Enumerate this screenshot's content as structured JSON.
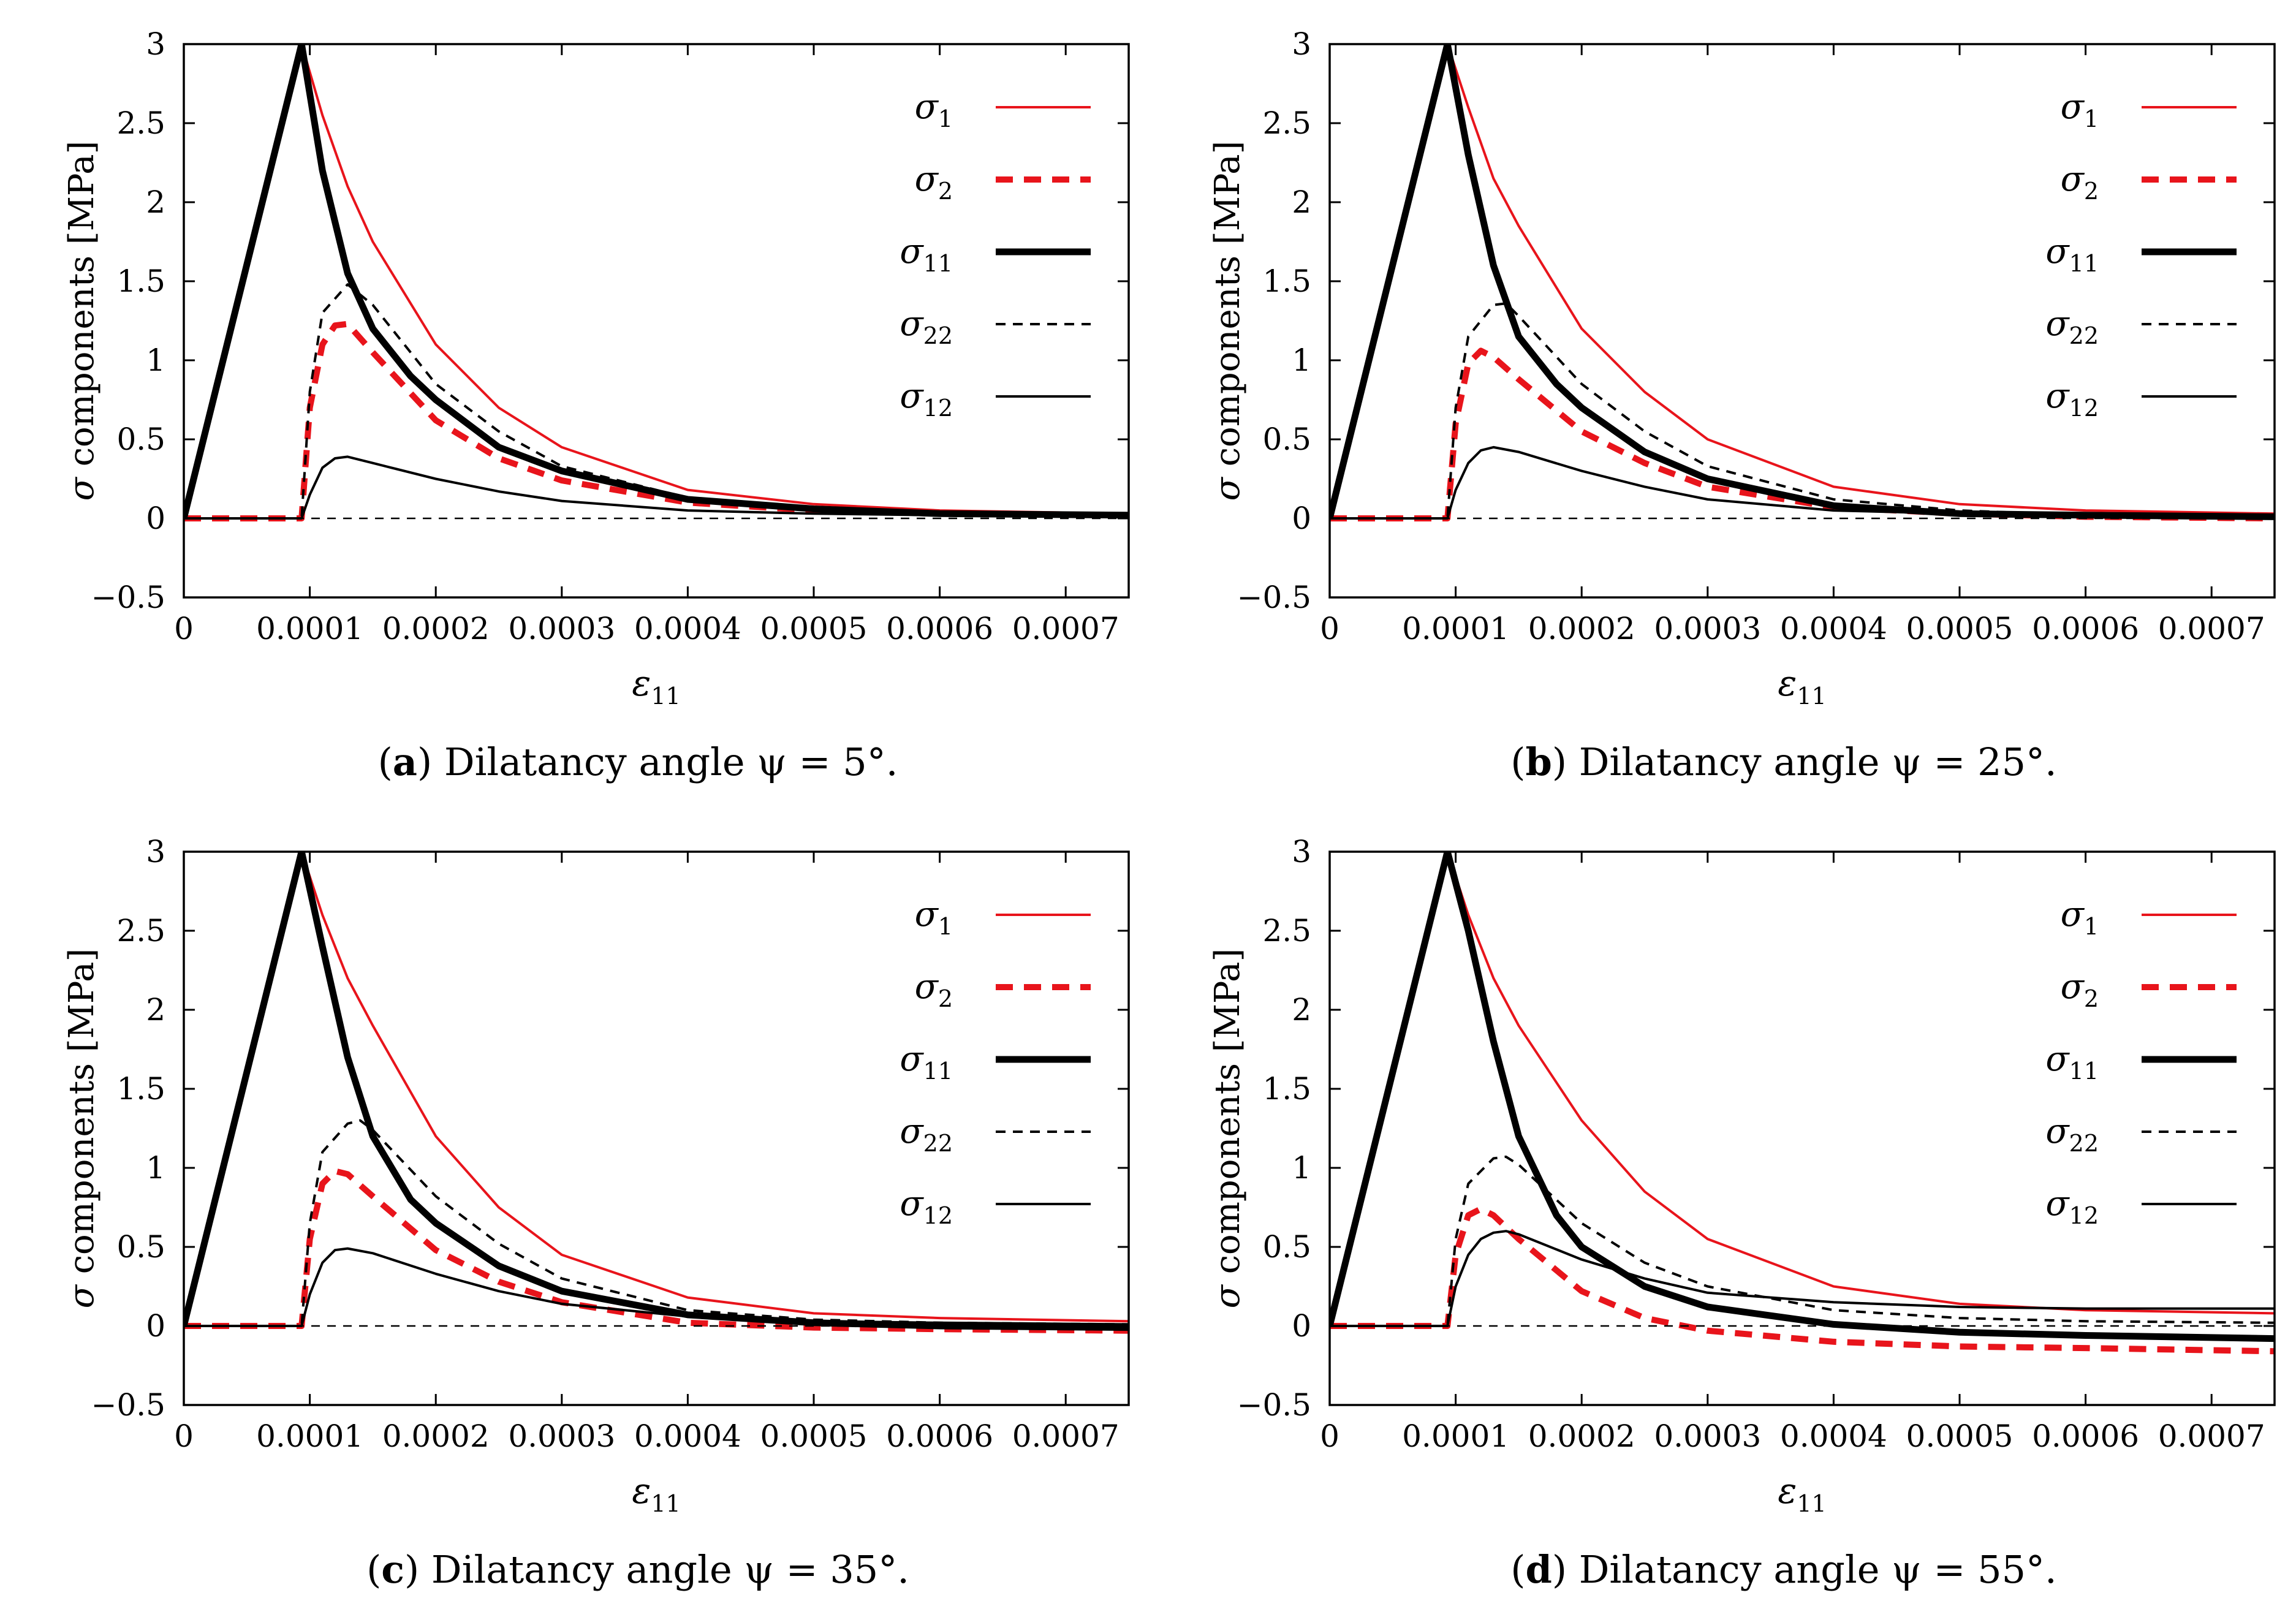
{
  "chart_data": [
    {
      "id": "a",
      "type": "line",
      "caption": {
        "letter": "a",
        "text": "Dilatancy angle ψ = 5°."
      },
      "xlabel": "ε11",
      "ylabel": "σ components [MPa]",
      "xlim": [
        0,
        0.00075
      ],
      "ylim": [
        -0.5,
        3
      ],
      "x_ticks": [
        "0",
        "0.0001",
        "0.0002",
        "0.0003",
        "0.0004",
        "0.0005",
        "0.0006",
        "0.0007"
      ],
      "y_ticks": [
        "−0.5",
        "0",
        "0.5",
        "1",
        "1.5",
        "2",
        "2.5",
        "3"
      ],
      "legend_position": "top-right",
      "series": [
        {
          "name": "σ1",
          "color": "#e8141b",
          "style": "solid-thin",
          "x": [
            0,
            9.35e-05,
            0.00011,
            0.00013,
            0.00015,
            0.0002,
            0.00025,
            0.0003,
            0.0004,
            0.0005,
            0.0006,
            0.00075
          ],
          "y": [
            0,
            3.0,
            2.55,
            2.1,
            1.75,
            1.1,
            0.7,
            0.45,
            0.18,
            0.09,
            0.05,
            0.03
          ]
        },
        {
          "name": "σ2",
          "color": "#e8141b",
          "style": "dashed-thick",
          "x": [
            0,
            9.35e-05,
            0.0001,
            0.00011,
            0.00012,
            0.00013,
            0.00015,
            0.0002,
            0.00025,
            0.0003,
            0.0004,
            0.0005,
            0.0006,
            0.00075
          ],
          "y": [
            0,
            0,
            0.7,
            1.1,
            1.22,
            1.23,
            1.05,
            0.62,
            0.38,
            0.24,
            0.1,
            0.05,
            0.03,
            0.02
          ]
        },
        {
          "name": "σ11",
          "color": "#000000",
          "style": "solid-thick",
          "x": [
            0,
            9.35e-05,
            0.00011,
            0.00013,
            0.00015,
            0.00018,
            0.0002,
            0.00025,
            0.0003,
            0.0004,
            0.0005,
            0.0006,
            0.00075
          ],
          "y": [
            0,
            3.0,
            2.2,
            1.55,
            1.2,
            0.9,
            0.75,
            0.45,
            0.3,
            0.12,
            0.06,
            0.03,
            0.02
          ]
        },
        {
          "name": "σ22",
          "color": "#000000",
          "style": "dashed-thin",
          "x": [
            0,
            9.35e-05,
            0.0001,
            0.00011,
            0.00013,
            0.00015,
            0.0002,
            0.00025,
            0.0003,
            0.0004,
            0.0005,
            0.0006,
            0.00075
          ],
          "y": [
            0,
            0,
            0.8,
            1.3,
            1.48,
            1.35,
            0.85,
            0.55,
            0.33,
            0.13,
            0.06,
            0.03,
            0.02
          ]
        },
        {
          "name": "σ12",
          "color": "#000000",
          "style": "solid-thin",
          "x": [
            0,
            9.35e-05,
            0.0001,
            0.00011,
            0.00012,
            0.00013,
            0.00015,
            0.0002,
            0.00025,
            0.0003,
            0.0004,
            0.0005,
            0.0006,
            0.00075
          ],
          "y": [
            0,
            0,
            0.15,
            0.32,
            0.38,
            0.39,
            0.35,
            0.25,
            0.17,
            0.11,
            0.05,
            0.03,
            0.02,
            0.01
          ]
        },
        {
          "name": "",
          "color": "#000000",
          "style": "zero-line",
          "x": [
            0,
            0.00075
          ],
          "y": [
            0,
            0
          ]
        }
      ]
    },
    {
      "id": "b",
      "type": "line",
      "caption": {
        "letter": "b",
        "text": "Dilatancy angle ψ = 25°."
      },
      "xlabel": "ε11",
      "ylabel": "σ components [MPa]",
      "xlim": [
        0,
        0.00075
      ],
      "ylim": [
        -0.5,
        3
      ],
      "x_ticks": [
        "0",
        "0.0001",
        "0.0002",
        "0.0003",
        "0.0004",
        "0.0005",
        "0.0006",
        "0.0007"
      ],
      "y_ticks": [
        "−0.5",
        "0",
        "0.5",
        "1",
        "1.5",
        "2",
        "2.5",
        "3"
      ],
      "legend_position": "top-right",
      "series": [
        {
          "name": "σ1",
          "color": "#e8141b",
          "style": "solid-thin",
          "x": [
            0,
            9.35e-05,
            0.00011,
            0.00013,
            0.00015,
            0.0002,
            0.00025,
            0.0003,
            0.0004,
            0.0005,
            0.0006,
            0.00075
          ],
          "y": [
            0,
            3.0,
            2.6,
            2.15,
            1.85,
            1.2,
            0.8,
            0.5,
            0.2,
            0.09,
            0.05,
            0.03
          ]
        },
        {
          "name": "σ2",
          "color": "#e8141b",
          "style": "dashed-thick",
          "x": [
            0,
            9.35e-05,
            0.0001,
            0.00011,
            0.00012,
            0.00013,
            0.00015,
            0.0002,
            0.00025,
            0.0003,
            0.0004,
            0.0005,
            0.0006,
            0.00075
          ],
          "y": [
            0,
            0,
            0.6,
            0.98,
            1.06,
            1.02,
            0.88,
            0.55,
            0.35,
            0.2,
            0.07,
            0.03,
            0.01,
            0.0
          ]
        },
        {
          "name": "σ11",
          "color": "#000000",
          "style": "solid-thick",
          "x": [
            0,
            9.35e-05,
            0.00011,
            0.00013,
            0.00015,
            0.00018,
            0.0002,
            0.00025,
            0.0003,
            0.0004,
            0.0005,
            0.0006,
            0.00075
          ],
          "y": [
            0,
            3.0,
            2.3,
            1.6,
            1.15,
            0.85,
            0.7,
            0.42,
            0.25,
            0.08,
            0.03,
            0.02,
            0.01
          ]
        },
        {
          "name": "σ22",
          "color": "#000000",
          "style": "dashed-thin",
          "x": [
            0,
            9.35e-05,
            0.0001,
            0.00011,
            0.00013,
            0.00014,
            0.00015,
            0.0002,
            0.00025,
            0.0003,
            0.0004,
            0.0005,
            0.0006,
            0.00075
          ],
          "y": [
            0,
            0,
            0.7,
            1.15,
            1.35,
            1.36,
            1.28,
            0.85,
            0.55,
            0.33,
            0.12,
            0.05,
            0.02,
            0.01
          ]
        },
        {
          "name": "σ12",
          "color": "#000000",
          "style": "solid-thin",
          "x": [
            0,
            9.35e-05,
            0.0001,
            0.00011,
            0.00012,
            0.00013,
            0.00015,
            0.0002,
            0.00025,
            0.0003,
            0.0004,
            0.0005,
            0.0006,
            0.00075
          ],
          "y": [
            0,
            0,
            0.18,
            0.35,
            0.43,
            0.45,
            0.42,
            0.3,
            0.2,
            0.12,
            0.05,
            0.03,
            0.02,
            0.01
          ]
        },
        {
          "name": "",
          "color": "#000000",
          "style": "zero-line",
          "x": [
            0,
            0.00075
          ],
          "y": [
            0,
            0
          ]
        }
      ]
    },
    {
      "id": "c",
      "type": "line",
      "caption": {
        "letter": "c",
        "text": "Dilatancy angle ψ = 35°."
      },
      "xlabel": "ε11",
      "ylabel": "σ components [MPa]",
      "xlim": [
        0,
        0.00075
      ],
      "ylim": [
        -0.5,
        3
      ],
      "x_ticks": [
        "0",
        "0.0001",
        "0.0002",
        "0.0003",
        "0.0004",
        "0.0005",
        "0.0006",
        "0.0007"
      ],
      "y_ticks": [
        "−0.5",
        "0",
        "0.5",
        "1",
        "1.5",
        "2",
        "2.5",
        "3"
      ],
      "legend_position": "top-right",
      "series": [
        {
          "name": "σ1",
          "color": "#e8141b",
          "style": "solid-thin",
          "x": [
            0,
            9.35e-05,
            0.00011,
            0.00013,
            0.00015,
            0.0002,
            0.00025,
            0.0003,
            0.0004,
            0.0005,
            0.0006,
            0.00075
          ],
          "y": [
            0,
            3.0,
            2.6,
            2.2,
            1.9,
            1.2,
            0.75,
            0.45,
            0.18,
            0.08,
            0.05,
            0.03
          ]
        },
        {
          "name": "σ2",
          "color": "#e8141b",
          "style": "dashed-thick",
          "x": [
            0,
            9.35e-05,
            0.0001,
            0.00011,
            0.00012,
            0.00013,
            0.00015,
            0.0002,
            0.00025,
            0.0003,
            0.0004,
            0.0005,
            0.0006,
            0.00075
          ],
          "y": [
            0,
            0,
            0.55,
            0.9,
            0.98,
            0.96,
            0.82,
            0.48,
            0.28,
            0.15,
            0.02,
            -0.01,
            -0.02,
            -0.03
          ]
        },
        {
          "name": "σ11",
          "color": "#000000",
          "style": "solid-thick",
          "x": [
            0,
            9.35e-05,
            0.00011,
            0.00013,
            0.00015,
            0.00018,
            0.0002,
            0.00025,
            0.0003,
            0.0004,
            0.0005,
            0.0006,
            0.00075
          ],
          "y": [
            0,
            3.0,
            2.4,
            1.7,
            1.2,
            0.8,
            0.65,
            0.38,
            0.22,
            0.07,
            0.02,
            0.0,
            -0.01
          ]
        },
        {
          "name": "σ22",
          "color": "#000000",
          "style": "dashed-thin",
          "x": [
            0,
            9.35e-05,
            0.0001,
            0.00011,
            0.00013,
            0.00014,
            0.00015,
            0.0002,
            0.00025,
            0.0003,
            0.0004,
            0.0005,
            0.0006,
            0.00075
          ],
          "y": [
            0,
            0,
            0.65,
            1.1,
            1.28,
            1.3,
            1.24,
            0.82,
            0.52,
            0.3,
            0.1,
            0.04,
            0.02,
            0.01
          ]
        },
        {
          "name": "σ12",
          "color": "#000000",
          "style": "solid-thin",
          "x": [
            0,
            9.35e-05,
            0.0001,
            0.00011,
            0.00012,
            0.00013,
            0.00015,
            0.0002,
            0.00025,
            0.0003,
            0.0004,
            0.0005,
            0.0006,
            0.00075
          ],
          "y": [
            0,
            0,
            0.2,
            0.4,
            0.48,
            0.49,
            0.46,
            0.33,
            0.22,
            0.14,
            0.06,
            0.03,
            0.02,
            0.01
          ]
        },
        {
          "name": "",
          "color": "#000000",
          "style": "zero-line",
          "x": [
            0,
            0.00075
          ],
          "y": [
            0,
            0
          ]
        }
      ]
    },
    {
      "id": "d",
      "type": "line",
      "caption": {
        "letter": "d",
        "text": "Dilatancy angle ψ = 55°."
      },
      "xlabel": "ε11",
      "ylabel": "σ components [MPa]",
      "xlim": [
        0,
        0.00075
      ],
      "ylim": [
        -0.5,
        3
      ],
      "x_ticks": [
        "0",
        "0.0001",
        "0.0002",
        "0.0003",
        "0.0004",
        "0.0005",
        "0.0006",
        "0.0007"
      ],
      "y_ticks": [
        "−0.5",
        "0",
        "0.5",
        "1",
        "1.5",
        "2",
        "2.5",
        "3"
      ],
      "legend_position": "top-right",
      "series": [
        {
          "name": "σ1",
          "color": "#e8141b",
          "style": "solid-thin",
          "x": [
            0,
            9.35e-05,
            0.00011,
            0.00013,
            0.00015,
            0.0002,
            0.00025,
            0.0003,
            0.0004,
            0.0005,
            0.0006,
            0.00075
          ],
          "y": [
            0,
            3.0,
            2.6,
            2.2,
            1.9,
            1.3,
            0.85,
            0.55,
            0.25,
            0.14,
            0.1,
            0.08
          ]
        },
        {
          "name": "σ2",
          "color": "#e8141b",
          "style": "dashed-thick",
          "x": [
            0,
            9.35e-05,
            0.0001,
            0.00011,
            0.00012,
            0.00013,
            0.00015,
            0.0002,
            0.00025,
            0.0003,
            0.0004,
            0.0005,
            0.0006,
            0.00075
          ],
          "y": [
            0,
            0,
            0.45,
            0.7,
            0.74,
            0.7,
            0.55,
            0.22,
            0.05,
            -0.03,
            -0.1,
            -0.13,
            -0.14,
            -0.16
          ]
        },
        {
          "name": "σ11",
          "color": "#000000",
          "style": "solid-thick",
          "x": [
            0,
            9.35e-05,
            0.00011,
            0.00013,
            0.00015,
            0.00018,
            0.0002,
            0.00025,
            0.0003,
            0.0004,
            0.0005,
            0.0006,
            0.00075
          ],
          "y": [
            0,
            3.0,
            2.5,
            1.8,
            1.2,
            0.7,
            0.5,
            0.25,
            0.12,
            0.01,
            -0.04,
            -0.06,
            -0.08
          ]
        },
        {
          "name": "σ22",
          "color": "#000000",
          "style": "dashed-thin",
          "x": [
            0,
            9.35e-05,
            0.0001,
            0.00011,
            0.00013,
            0.00014,
            0.00015,
            0.0002,
            0.00025,
            0.0003,
            0.0004,
            0.0005,
            0.0006,
            0.00075
          ],
          "y": [
            0,
            0,
            0.55,
            0.9,
            1.06,
            1.07,
            1.02,
            0.65,
            0.4,
            0.25,
            0.1,
            0.05,
            0.03,
            0.02
          ]
        },
        {
          "name": "σ12",
          "color": "#000000",
          "style": "solid-thin",
          "x": [
            0,
            9.35e-05,
            0.0001,
            0.00011,
            0.00012,
            0.00013,
            0.00014,
            0.00015,
            0.0002,
            0.00025,
            0.0003,
            0.0004,
            0.0005,
            0.0006,
            0.00075
          ],
          "y": [
            0,
            0,
            0.25,
            0.45,
            0.55,
            0.59,
            0.6,
            0.58,
            0.42,
            0.3,
            0.21,
            0.15,
            0.12,
            0.11,
            0.11
          ]
        },
        {
          "name": "",
          "color": "#000000",
          "style": "zero-line",
          "x": [
            0,
            0.00075
          ],
          "y": [
            0,
            0
          ]
        }
      ]
    }
  ]
}
